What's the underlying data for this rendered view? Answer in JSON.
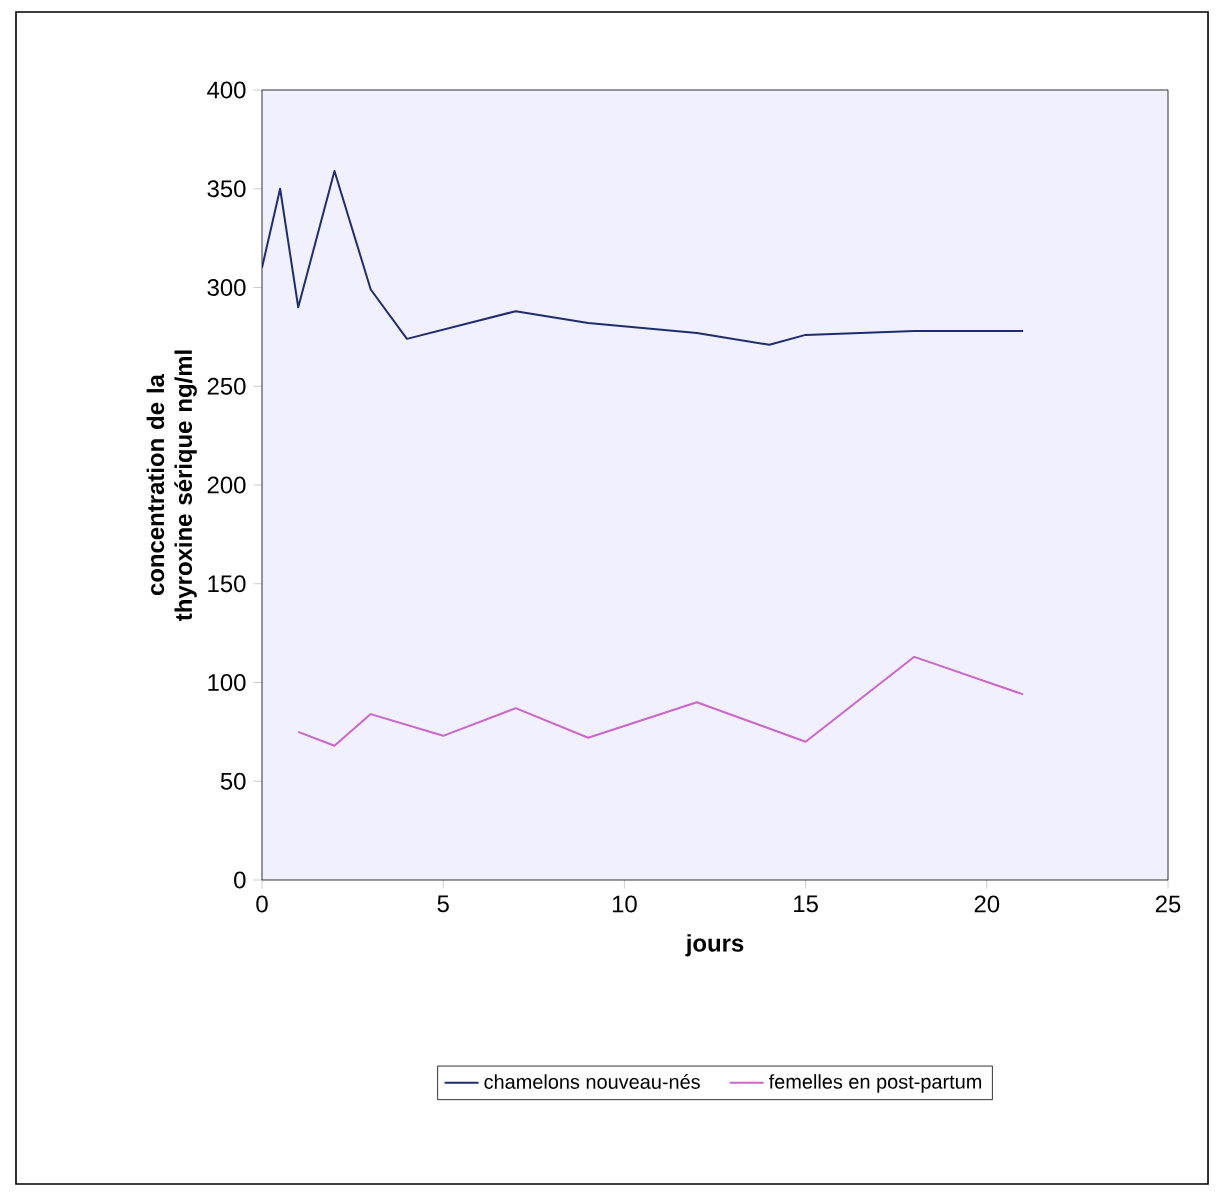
{
  "chart_data": {
    "type": "line",
    "xlabel": "jours",
    "ylabel": "concentration de la thyroxine sérique ng/ml",
    "xlim": [
      0,
      25
    ],
    "xticks": [
      0,
      5,
      10,
      15,
      20,
      25
    ],
    "ylim": [
      0,
      400
    ],
    "yticks": [
      0,
      50,
      100,
      150,
      200,
      250,
      300,
      350,
      400
    ],
    "grid": false,
    "legend": "bottom",
    "marker": "none",
    "line_style": "solid",
    "series": [
      {
        "name": "chamelons nouveau-nés",
        "color": "#1f2d6e",
        "x": [
          0,
          0.5,
          1,
          2,
          3,
          4,
          7,
          9,
          12,
          14,
          15,
          18,
          21
        ],
        "values": [
          310,
          350,
          290,
          359,
          299,
          274,
          288,
          282,
          277,
          271,
          276,
          278,
          278
        ]
      },
      {
        "name": "femelles en post-partum",
        "color": "#cc66cc",
        "x": [
          1,
          2,
          3,
          5,
          7,
          9,
          12,
          15,
          18,
          21
        ],
        "values": [
          75,
          68,
          84,
          73,
          87,
          72,
          90,
          70,
          113,
          94
        ]
      }
    ]
  }
}
